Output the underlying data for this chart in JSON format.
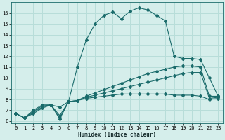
{
  "xlabel": "Humidex (Indice chaleur)",
  "xlim": [
    -0.5,
    23.5
  ],
  "ylim": [
    5.8,
    17.0
  ],
  "yticks": [
    6,
    7,
    8,
    9,
    10,
    11,
    12,
    13,
    14,
    15,
    16
  ],
  "xticks": [
    0,
    1,
    2,
    3,
    4,
    5,
    6,
    7,
    8,
    9,
    10,
    11,
    12,
    13,
    14,
    15,
    16,
    17,
    18,
    19,
    20,
    21,
    22,
    23
  ],
  "bg_color": "#d5eeeb",
  "line_color": "#1a6b6b",
  "grid_color": "#b8ddd9",
  "lines": [
    {
      "x": [
        0,
        1,
        2,
        3,
        4,
        5,
        6,
        7,
        8,
        9,
        10,
        11,
        12,
        13,
        14,
        15,
        16,
        17,
        18,
        19,
        20,
        21,
        22,
        23
      ],
      "y": [
        6.7,
        6.3,
        6.8,
        7.3,
        7.5,
        6.2,
        7.8,
        11.0,
        13.5,
        15.0,
        15.8,
        16.1,
        15.5,
        16.2,
        16.5,
        16.3,
        15.8,
        15.3,
        12.0,
        11.8,
        11.8,
        11.7,
        10.0,
        8.3
      ]
    },
    {
      "x": [
        0,
        1,
        2,
        3,
        4,
        5,
        6,
        7,
        8,
        9,
        10,
        11,
        12,
        13,
        14,
        15,
        16,
        17,
        18,
        19,
        20,
        21,
        22,
        23
      ],
      "y": [
        6.7,
        6.3,
        7.0,
        7.5,
        7.5,
        7.3,
        7.8,
        7.9,
        8.3,
        8.6,
        8.9,
        9.2,
        9.5,
        9.8,
        10.1,
        10.4,
        10.6,
        10.8,
        11.0,
        11.1,
        11.1,
        11.0,
        8.3,
        8.3
      ]
    },
    {
      "x": [
        0,
        1,
        2,
        3,
        4,
        5,
        6,
        7,
        8,
        9,
        10,
        11,
        12,
        13,
        14,
        15,
        16,
        17,
        18,
        19,
        20,
        21,
        22,
        23
      ],
      "y": [
        6.7,
        6.3,
        6.9,
        7.4,
        7.5,
        6.5,
        7.8,
        7.9,
        8.2,
        8.4,
        8.6,
        8.8,
        9.0,
        9.2,
        9.4,
        9.6,
        9.8,
        10.0,
        10.2,
        10.4,
        10.5,
        10.5,
        8.1,
        8.2
      ]
    },
    {
      "x": [
        0,
        1,
        2,
        3,
        4,
        5,
        6,
        7,
        8,
        9,
        10,
        11,
        12,
        13,
        14,
        15,
        16,
        17,
        18,
        19,
        20,
        21,
        22,
        23
      ],
      "y": [
        6.7,
        6.3,
        6.7,
        7.2,
        7.5,
        6.3,
        7.8,
        7.9,
        8.1,
        8.2,
        8.3,
        8.4,
        8.5,
        8.5,
        8.5,
        8.5,
        8.5,
        8.5,
        8.4,
        8.4,
        8.4,
        8.3,
        8.0,
        8.1
      ]
    }
  ]
}
